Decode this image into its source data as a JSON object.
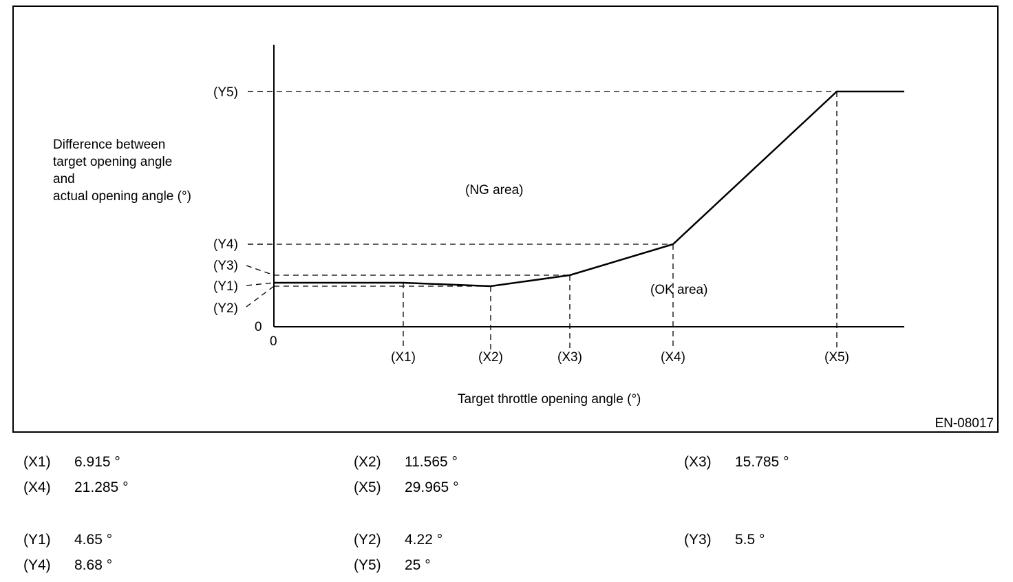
{
  "chart_data": {
    "type": "line",
    "ylabel_lines": [
      "Difference between",
      "target opening angle",
      "and",
      "actual opening angle (°)"
    ],
    "xlabel": "Target throttle opening angle (°)",
    "origin_x_label": "0",
    "origin_y_label": "0",
    "regions": {
      "ng": "(NG area)",
      "ok": "(OK area)"
    },
    "figure_id": "EN-08017",
    "x_ticks": [
      "(X1)",
      "(X2)",
      "(X3)",
      "(X4)",
      "(X5)"
    ],
    "y_ticks": [
      "(Y1)",
      "(Y2)",
      "(Y3)",
      "(Y4)",
      "(Y5)"
    ],
    "series": [
      {
        "points": [
          {
            "x": 0,
            "y": 4.65
          },
          {
            "x": 6.915,
            "y": 4.65
          },
          {
            "x": 11.565,
            "y": 4.22
          },
          {
            "x": 15.785,
            "y": 5.5
          },
          {
            "x": 21.285,
            "y": 8.68
          },
          {
            "x": 29.965,
            "y": 25
          },
          {
            "x": 33.5,
            "y": 25
          }
        ]
      }
    ],
    "grid": false,
    "reference_lines": "dashed"
  },
  "legend": [
    {
      "key": "(X1)",
      "value": "6.915 °"
    },
    {
      "key": "(X2)",
      "value": "11.565 °"
    },
    {
      "key": "(X3)",
      "value": "15.785 °"
    },
    {
      "key": "(X4)",
      "value": "21.285 °"
    },
    {
      "key": "(X5)",
      "value": "29.965 °"
    },
    {
      "key": "(Y1)",
      "value": "4.65 °"
    },
    {
      "key": "(Y2)",
      "value": "4.22 °"
    },
    {
      "key": "(Y3)",
      "value": "5.5 °"
    },
    {
      "key": "(Y4)",
      "value": "8.68 °"
    },
    {
      "key": "(Y5)",
      "value": "25 °"
    }
  ]
}
